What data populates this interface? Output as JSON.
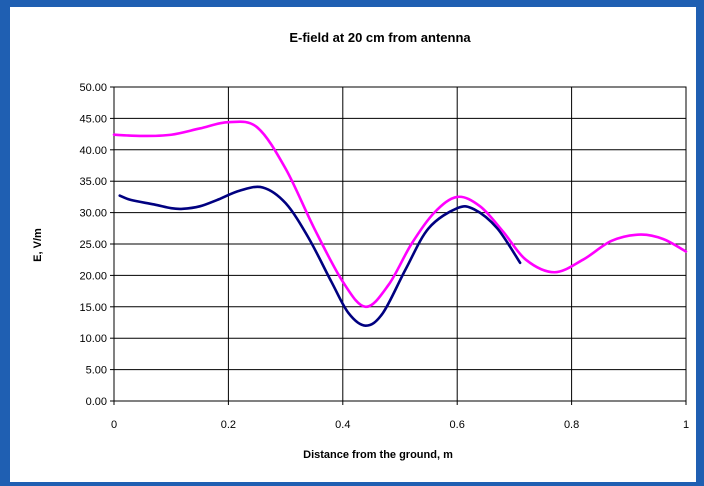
{
  "chart_data": {
    "type": "line",
    "title": "E-field at 20 cm from antenna",
    "xlabel": "Distance from the ground, m",
    "ylabel": "E, V/m",
    "xlim": [
      0,
      1
    ],
    "ylim": [
      0,
      50
    ],
    "x_ticks": [
      "0",
      "0.2",
      "0.4",
      "0.6",
      "0.8",
      "1"
    ],
    "y_ticks": [
      "0.00",
      "5.00",
      "10.00",
      "15.00",
      "20.00",
      "25.00",
      "30.00",
      "35.00",
      "40.00",
      "45.00",
      "50.00"
    ],
    "grid": true,
    "series": [
      {
        "color": "#ff00ff",
        "x": [
          0,
          0.05,
          0.1,
          0.15,
          0.2,
          0.25,
          0.3,
          0.35,
          0.4,
          0.44,
          0.48,
          0.52,
          0.56,
          0.6,
          0.64,
          0.68,
          0.72,
          0.77,
          0.82,
          0.87,
          0.92,
          0.96,
          1.0
        ],
        "y": [
          42.4,
          42.2,
          42.4,
          43.4,
          44.4,
          43.6,
          37.0,
          27.5,
          19.0,
          15.0,
          18.5,
          25.0,
          30.0,
          32.5,
          31.0,
          27.0,
          22.5,
          20.5,
          22.5,
          25.5,
          26.5,
          25.8,
          23.8
        ]
      },
      {
        "color": "#000080",
        "x": [
          0.01,
          0.03,
          0.07,
          0.1,
          0.12,
          0.15,
          0.18,
          0.22,
          0.26,
          0.3,
          0.34,
          0.38,
          0.41,
          0.44,
          0.47,
          0.51,
          0.55,
          0.6,
          0.63,
          0.67,
          0.71
        ],
        "y": [
          32.7,
          32.0,
          31.3,
          30.7,
          30.6,
          31.0,
          32.0,
          33.5,
          34.0,
          31.5,
          26.0,
          19.0,
          14.0,
          12.0,
          14.0,
          21.0,
          27.5,
          30.7,
          30.5,
          27.5,
          22.0
        ]
      }
    ]
  }
}
